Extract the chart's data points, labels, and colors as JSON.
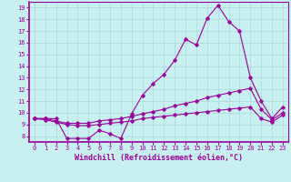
{
  "xlabel": "Windchill (Refroidissement éolien,°C)",
  "bg_color": "#c8f0f0",
  "line_color": "#990099",
  "grid_color": "#a8d8d8",
  "x": [
    0,
    1,
    2,
    3,
    4,
    5,
    6,
    7,
    8,
    9,
    10,
    11,
    12,
    13,
    14,
    15,
    16,
    17,
    18,
    19,
    20,
    21,
    22,
    23
  ],
  "line1": [
    9.5,
    9.5,
    9.5,
    7.8,
    7.8,
    7.8,
    8.5,
    8.2,
    7.8,
    9.9,
    11.5,
    12.5,
    13.3,
    14.5,
    16.3,
    15.8,
    18.1,
    19.2,
    17.8,
    17.0,
    13.0,
    11.0,
    9.5,
    10.5
  ],
  "line2": [
    9.5,
    9.5,
    9.3,
    9.1,
    9.1,
    9.1,
    9.3,
    9.4,
    9.5,
    9.7,
    9.9,
    10.1,
    10.3,
    10.6,
    10.8,
    11.0,
    11.3,
    11.5,
    11.7,
    11.9,
    12.1,
    10.3,
    9.4,
    10.0
  ],
  "line3": [
    9.5,
    9.4,
    9.2,
    9.0,
    8.9,
    8.9,
    9.0,
    9.1,
    9.2,
    9.3,
    9.5,
    9.6,
    9.7,
    9.8,
    9.9,
    10.0,
    10.1,
    10.2,
    10.3,
    10.4,
    10.5,
    9.5,
    9.2,
    9.8
  ],
  "ylim": [
    7.5,
    19.5
  ],
  "yticks": [
    8,
    9,
    10,
    11,
    12,
    13,
    14,
    15,
    16,
    17,
    18,
    19
  ],
  "xticks": [
    0,
    1,
    2,
    3,
    4,
    5,
    6,
    7,
    8,
    9,
    10,
    11,
    12,
    13,
    14,
    15,
    16,
    17,
    18,
    19,
    20,
    21,
    22,
    23
  ],
  "marker": "D",
  "markersize": 1.8,
  "linewidth": 0.8,
  "tick_fontsize": 5.0,
  "label_fontsize": 6.0
}
